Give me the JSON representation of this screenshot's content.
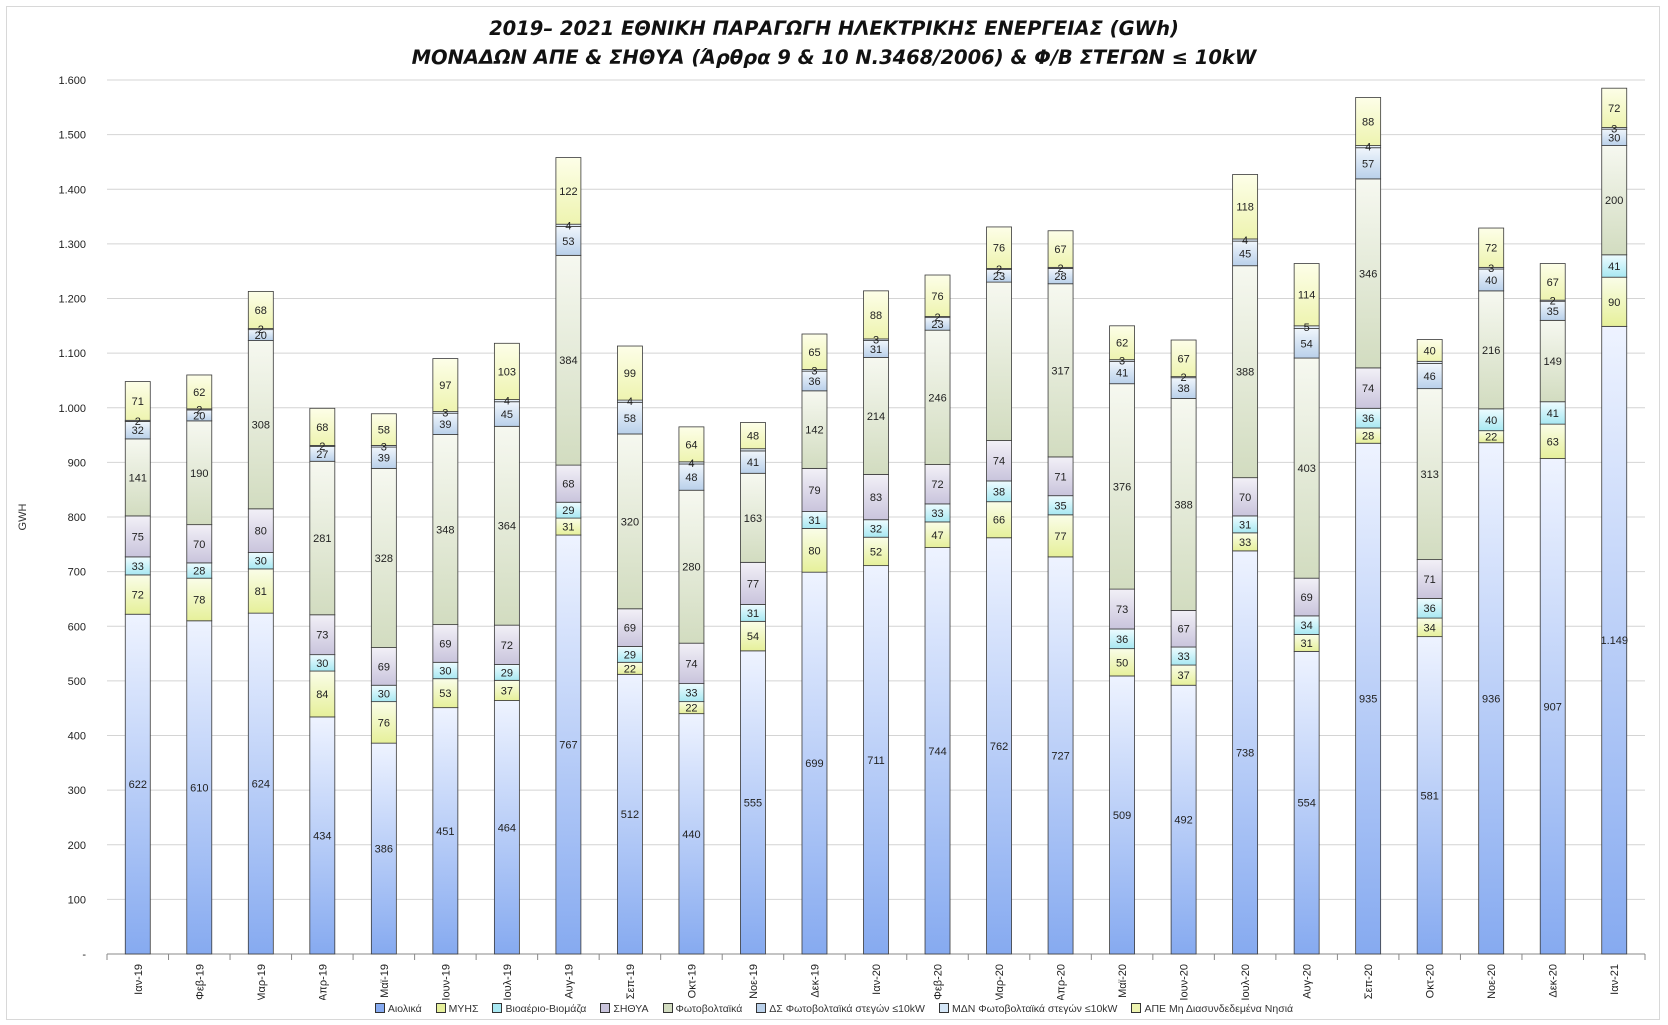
{
  "chart_data": {
    "type": "bar",
    "stacked": true,
    "title": "2019– 2021 ΕΘΝΙΚΗ ΠΑΡΑΓΩΓΗ ΗΛΕΚΤΡΙΚΗΣ ΕΝΕΡΓΕΙΑΣ (GWh)",
    "subtitle": "ΜΟΝΑΔΩΝ ΑΠΕ & ΣΗΘΥΑ (Άρθρα 9 & 10 Ν.3468/2006)  & Φ/Β ΣΤΕΓΩΝ ≤ 10kW",
    "ylabel": "GWH",
    "xlabel": "",
    "ylim": [
      0,
      1600
    ],
    "yticks": [
      0,
      100,
      200,
      300,
      400,
      500,
      600,
      700,
      800,
      900,
      1000,
      1100,
      1200,
      1300,
      1400,
      1500,
      1600
    ],
    "ytick_labels": [
      "-",
      "100",
      "200",
      "300",
      "400",
      "500",
      "600",
      "700",
      "800",
      "900",
      "1.000",
      "1.100",
      "1.200",
      "1.300",
      "1.400",
      "1.500",
      "1.600"
    ],
    "grid": true,
    "legend_position": "bottom",
    "categories": [
      "Ιαν-19",
      "Φεβ-19",
      "Μαρ-19",
      "Απρ-19",
      "Μαϊ-19",
      "Ιουν-19",
      "Ιουλ-19",
      "Αυγ-19",
      "Σεπ-19",
      "Οκτ-19",
      "Νοε-19",
      "Δεκ-19",
      "Ιαν-20",
      "Φεβ-20",
      "Μαρ-20",
      "Απρ-20",
      "Μαϊ-20",
      "Ιουν-20",
      "Ιουλ-20",
      "Αυγ-20",
      "Σεπ-20",
      "Οκτ-20",
      "Νοε-20",
      "Δεκ-20",
      "Ιαν-21"
    ],
    "series": [
      {
        "name": "Αιολικά",
        "color_top": "#eef3ff",
        "color_bottom": "#86aaf0",
        "values": [
          622,
          610,
          624,
          434,
          386,
          451,
          464,
          767,
          512,
          440,
          555,
          699,
          711,
          744,
          762,
          727,
          509,
          492,
          738,
          554,
          935,
          581,
          936,
          907,
          1149
        ],
        "labels": [
          "622",
          "610",
          "624",
          "434",
          "386",
          "451",
          "464",
          "767",
          "512",
          "440",
          "555",
          "699",
          "711",
          "744",
          "762",
          "727",
          "509",
          "492",
          "738",
          "554",
          "935",
          "581",
          "936",
          "907",
          "1.149"
        ]
      },
      {
        "name": "ΜΥΗΣ",
        "color_top": "#fafde8",
        "color_bottom": "#e6f09a",
        "values": [
          72,
          78,
          81,
          84,
          76,
          53,
          37,
          31,
          22,
          22,
          54,
          80,
          52,
          47,
          66,
          77,
          50,
          37,
          33,
          31,
          28,
          34,
          22,
          63,
          90
        ]
      },
      {
        "name": "Βιοαέριο-Βιομάζα",
        "color_top": "#eefcff",
        "color_bottom": "#a8e8f2",
        "values": [
          33,
          28,
          30,
          30,
          30,
          30,
          29,
          29,
          29,
          33,
          31,
          31,
          32,
          33,
          38,
          35,
          36,
          33,
          31,
          34,
          36,
          36,
          40,
          41,
          41
        ]
      },
      {
        "name": "ΣΗΘΥΑ",
        "color_top": "#f2f0f7",
        "color_bottom": "#c9c4dc",
        "values": [
          75,
          70,
          80,
          73,
          69,
          69,
          72,
          68,
          69,
          74,
          77,
          79,
          83,
          72,
          74,
          71,
          73,
          67,
          70,
          69,
          74,
          71,
          0,
          0,
          0
        ]
      },
      {
        "name": "Φωτοβολταϊκά",
        "color_top": "#f6f8f0",
        "color_bottom": "#d2dcc0",
        "values": [
          141,
          190,
          308,
          281,
          328,
          348,
          364,
          384,
          320,
          280,
          163,
          142,
          214,
          246,
          290,
          317,
          376,
          388,
          388,
          403,
          346,
          313,
          216,
          149,
          200
        ],
        "labels": [
          "141",
          "190",
          "308",
          "281",
          "328",
          "348",
          "364",
          "384",
          "320",
          "280",
          "163",
          "142",
          "214",
          "246",
          "",
          "317",
          "376",
          "388",
          "388",
          "403",
          "346",
          "313",
          "216",
          "149",
          "200"
        ]
      },
      {
        "name": "ΔΣ Φωτοβολταϊκά στεγών ≤10kW",
        "color_top": "#f0f6fc",
        "color_bottom": "#b9d0ea",
        "values": [
          32,
          20,
          20,
          27,
          39,
          39,
          45,
          53,
          58,
          48,
          41,
          36,
          31,
          23,
          23,
          28,
          41,
          38,
          45,
          54,
          57,
          46,
          40,
          35,
          30
        ],
        "labels": [
          "32",
          "20",
          "20",
          "27",
          "39",
          "39",
          "45",
          "53",
          "58",
          "48",
          "41",
          "36",
          "31",
          "23",
          "23",
          "28",
          "41",
          "38",
          "45",
          "54",
          "57",
          "46",
          "40",
          "35",
          "30"
        ]
      },
      {
        "name": "ΜΔΝ Φωτοβολταϊκά στεγών ≤10kW",
        "color_top": "#f6fafe",
        "color_bottom": "#d4e6f7",
        "values": [
          2,
          2,
          2,
          2,
          3,
          3,
          4,
          4,
          4,
          4,
          4,
          3,
          3,
          2,
          2,
          2,
          3,
          2,
          4,
          5,
          4,
          4,
          3,
          2,
          3
        ],
        "labels": [
          "2",
          "2",
          "2",
          "2",
          "3",
          "3",
          "4",
          "4",
          "4",
          "4",
          "",
          "3",
          "3",
          "2",
          "2",
          "2",
          "3",
          "2",
          "4",
          "5",
          "4",
          "",
          "3",
          "2",
          "3"
        ]
      },
      {
        "name": "ΑΠΕ Μη Διασυνδεδεμένα Νησιά",
        "color_top": "#fdfee8",
        "color_bottom": "#eef4b0",
        "values": [
          71,
          62,
          68,
          68,
          58,
          97,
          103,
          122,
          99,
          64,
          48,
          65,
          88,
          76,
          76,
          67,
          62,
          67,
          118,
          114,
          88,
          40,
          72,
          67,
          72
        ],
        "labels": [
          "71",
          "62",
          "68",
          "68",
          "58",
          "97",
          "103",
          "122",
          "99",
          "64",
          "48",
          "65",
          "88",
          "76",
          "76",
          "67",
          "62",
          "67",
          "118",
          "114",
          "88",
          "40",
          "72",
          "67",
          "72"
        ]
      }
    ]
  }
}
